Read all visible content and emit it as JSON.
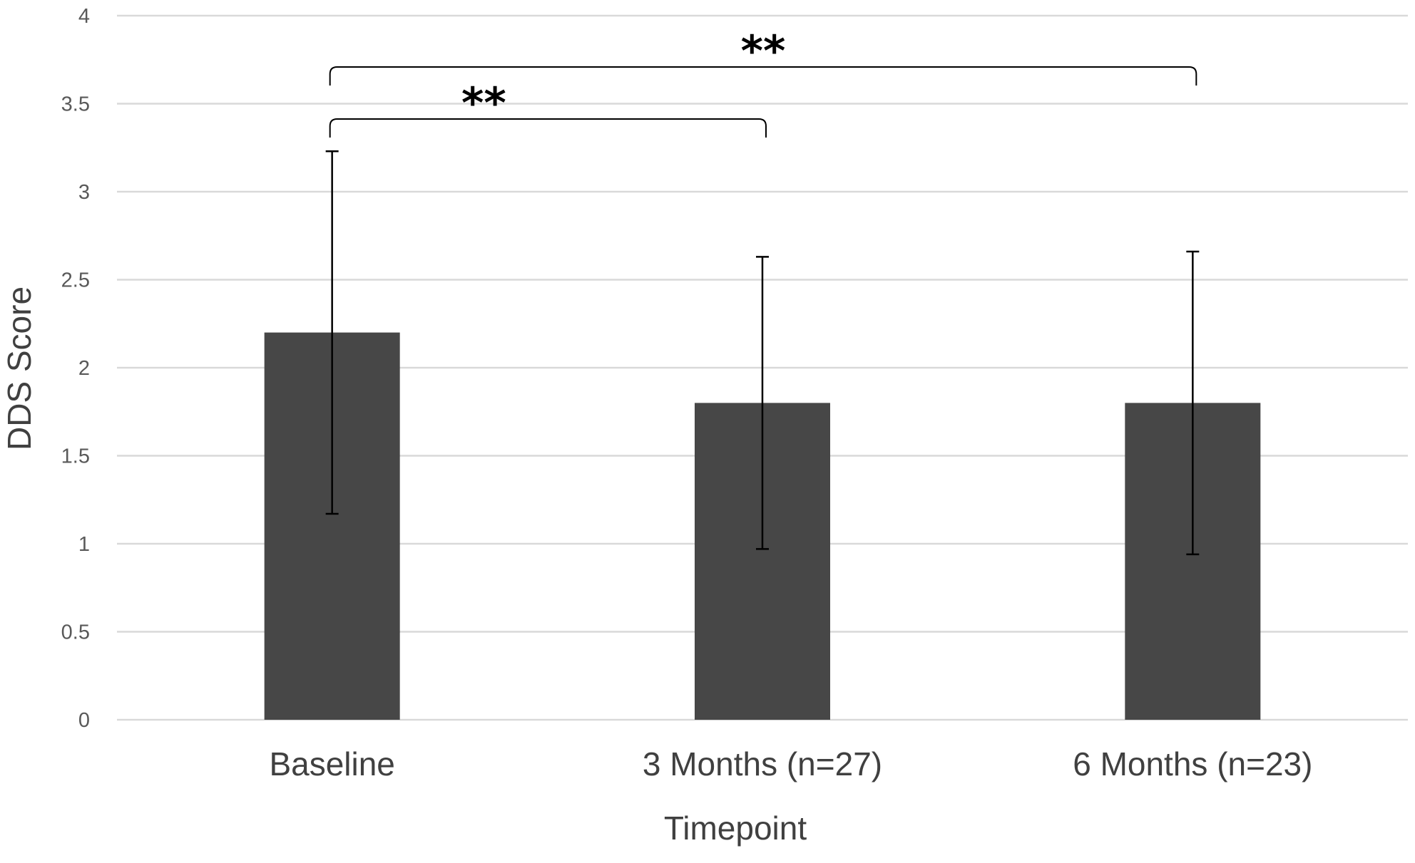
{
  "chart_data": {
    "type": "bar",
    "title": "",
    "xlabel": "Timepoint",
    "ylabel": "DDS Score",
    "ylim": [
      0,
      4
    ],
    "yticks": [
      0,
      0.5,
      1,
      1.5,
      2,
      2.5,
      3,
      3.5,
      4
    ],
    "ytick_labels": [
      "0",
      "0.5",
      "1",
      "1.5",
      "2",
      "2.5",
      "3",
      "3.5",
      "4"
    ],
    "categories": [
      "Baseline",
      "3 Months (n=27)",
      "6 Months (n=23)"
    ],
    "values": [
      2.2,
      1.8,
      1.8
    ],
    "error": [
      1.03,
      0.83,
      0.86
    ],
    "grid": true,
    "legend": "none",
    "bar_color": "#474747",
    "grid_color": "#d9d9d9",
    "significance": [
      {
        "from": 0,
        "to": 1,
        "label": "**"
      },
      {
        "from": 0,
        "to": 2,
        "label": "**"
      }
    ]
  }
}
